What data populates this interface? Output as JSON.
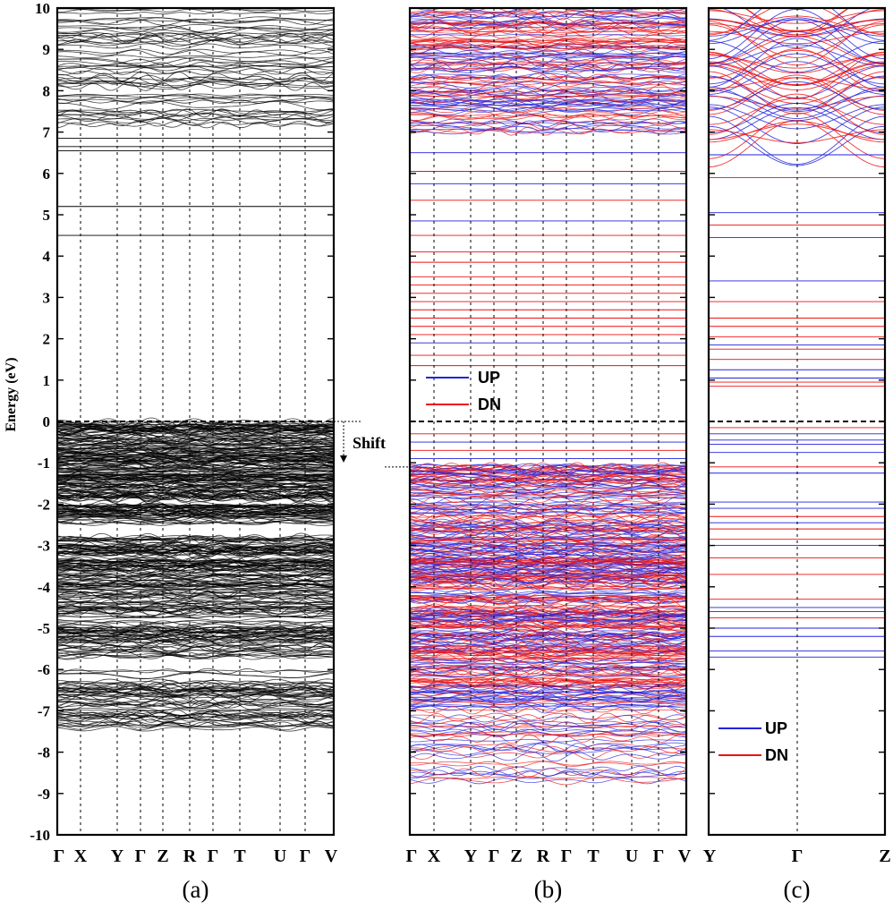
{
  "chart_data": [
    {
      "panel": "(a)",
      "type": "line",
      "ylabel": "Energy (eV)",
      "ylim": [
        -10,
        10
      ],
      "yticks": [
        "-10",
        "-9",
        "-8",
        "-7",
        "-6",
        "-5",
        "-4",
        "-3",
        "-2",
        "-1",
        "0",
        "1",
        "2",
        "3",
        "4",
        "5",
        "6",
        "7",
        "8",
        "9",
        "10"
      ],
      "kpath": [
        "Γ",
        "X",
        "Y",
        "Γ",
        "Z",
        "R",
        "Γ",
        "T",
        "U",
        "Γ",
        "V"
      ],
      "colors": {
        "bands": "#000000"
      },
      "fermi_level": 0,
      "flat_levels": [
        6.55,
        6.65,
        6.85,
        5.2,
        4.5
      ],
      "band_groups": [
        {
          "range": [
            -7.5,
            -6.0
          ],
          "density": "medium"
        },
        {
          "range": [
            -5.7,
            -3.5
          ],
          "density": "high"
        },
        {
          "range": [
            -3.5,
            -2.8
          ],
          "density": "medium"
        },
        {
          "range": [
            -2.5,
            0.0
          ],
          "density": "very high"
        },
        {
          "range": [
            7.0,
            10.0
          ],
          "density": "medium"
        }
      ],
      "annotation": {
        "text": "Shift",
        "from": 0,
        "to": -1.1
      }
    },
    {
      "panel": "(b)",
      "type": "line",
      "ylim": [
        -10,
        10
      ],
      "kpath": [
        "Γ",
        "X",
        "Y",
        "Γ",
        "Z",
        "R",
        "Γ",
        "T",
        "U",
        "Γ",
        "V"
      ],
      "legend": [
        {
          "label": "UP",
          "color": "#2222dd"
        },
        {
          "label": "DN",
          "color": "#ee1111"
        }
      ],
      "fermi_level": 0,
      "up_flat_levels": [
        6.5,
        5.75,
        4.85,
        1.9,
        -0.5,
        -0.9
      ],
      "dn_flat_levels": [
        6.05,
        5.35,
        4.5,
        4.1,
        3.85,
        3.5,
        3.3,
        3.1,
        2.9,
        2.7,
        2.5,
        2.3,
        2.1,
        1.6,
        1.35,
        -0.3,
        -0.7
      ],
      "band_groups": [
        {
          "range": [
            -8.7,
            -6.5
          ],
          "density": "medium"
        },
        {
          "range": [
            -6.5,
            -4.5
          ],
          "density": "high"
        },
        {
          "range": [
            -4.5,
            -1.05
          ],
          "density": "very high"
        },
        {
          "range": [
            7.0,
            10.0
          ],
          "density": "high"
        }
      ]
    },
    {
      "panel": "(c)",
      "type": "line",
      "ylim": [
        -10,
        10
      ],
      "kpath": [
        "Y",
        "Γ",
        "Z"
      ],
      "legend": [
        {
          "label": "UP",
          "color": "#2222dd"
        },
        {
          "label": "DN",
          "color": "#ee1111"
        }
      ],
      "fermi_level": 0,
      "up_flat_levels": [
        6.45,
        5.05,
        4.45,
        3.4,
        1.85,
        1.25,
        1.05,
        -0.3,
        -0.45,
        -0.55,
        -0.75,
        -1.25,
        -1.95,
        -2.1,
        -2.45,
        -3.0,
        -4.5,
        -4.6,
        -5.0,
        -5.2,
        -5.55,
        -5.7
      ],
      "dn_flat_levels": [
        5.9,
        4.75,
        2.9,
        2.5,
        2.3,
        2.05,
        1.75,
        1.5,
        0.95,
        0.85,
        -0.15,
        -1.1,
        -2.3,
        -2.6,
        -2.85,
        -3.3,
        -3.7,
        -4.3,
        -4.75
      ],
      "band_groups": [
        {
          "range": [
            6.6,
            10.0
          ],
          "density": "medium",
          "dispersive": true
        }
      ]
    }
  ]
}
